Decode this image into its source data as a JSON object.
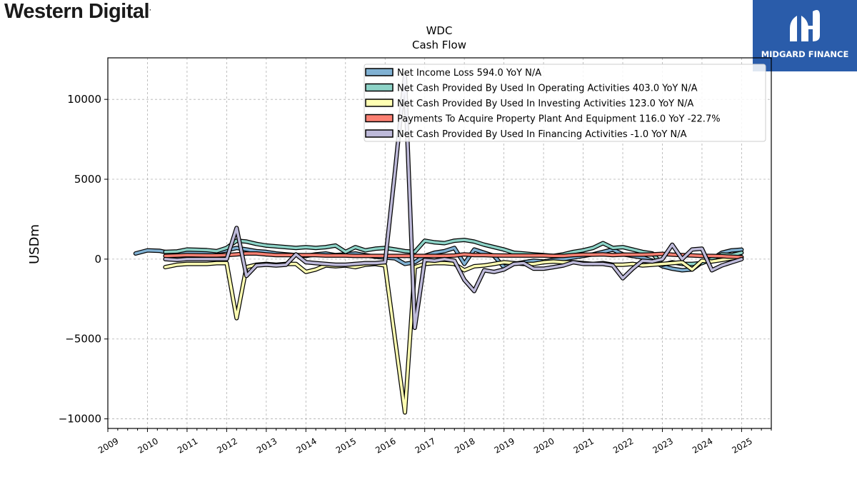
{
  "brand": {
    "name": "Western Digital"
  },
  "partner": {
    "name": "MIDGARD FINANCE"
  },
  "chart_data": {
    "type": "line",
    "title": "WDC",
    "subtitle": "Cash Flow",
    "ylabel": "USDm",
    "xlabel": "",
    "xlim": [
      2009.0,
      2025.75
    ],
    "ylim": [
      -10600,
      12600
    ],
    "y_ticks": [
      -10000,
      -5000,
      0,
      5000,
      10000
    ],
    "x_ticks": [
      2009,
      2010,
      2011,
      2012,
      2013,
      2014,
      2015,
      2016,
      2017,
      2018,
      2019,
      2020,
      2021,
      2022,
      2023,
      2024,
      2025
    ],
    "grid": true,
    "legend_position": "top-right",
    "series": [
      {
        "name": "Net Income Loss",
        "legend": "Net Income Loss  594.0 YoY N/A",
        "color": "#80b1d3",
        "points": [
          [
            2009.7,
            350
          ],
          [
            2010.0,
            550
          ],
          [
            2010.3,
            520
          ],
          [
            2010.5,
            420
          ],
          [
            2010.75,
            380
          ],
          [
            2011.0,
            430
          ],
          [
            2011.5,
            400
          ],
          [
            2011.75,
            450
          ],
          [
            2012.0,
            550
          ],
          [
            2012.25,
            700
          ],
          [
            2012.5,
            600
          ],
          [
            2012.75,
            500
          ],
          [
            2013.0,
            450
          ],
          [
            2013.25,
            350
          ],
          [
            2013.5,
            300
          ],
          [
            2013.75,
            250
          ],
          [
            2014.0,
            200
          ],
          [
            2014.25,
            300
          ],
          [
            2014.5,
            350
          ],
          [
            2014.75,
            250
          ],
          [
            2015.0,
            300
          ],
          [
            2015.25,
            350
          ],
          [
            2015.5,
            250
          ],
          [
            2015.75,
            150
          ],
          [
            2016.0,
            100
          ],
          [
            2016.25,
            50
          ],
          [
            2016.5,
            -300
          ],
          [
            2016.75,
            -200
          ],
          [
            2017.0,
            200
          ],
          [
            2017.25,
            400
          ],
          [
            2017.5,
            500
          ],
          [
            2017.75,
            700
          ],
          [
            2018.0,
            -300
          ],
          [
            2018.25,
            600
          ],
          [
            2018.5,
            400
          ],
          [
            2018.75,
            200
          ],
          [
            2019.0,
            -500
          ],
          [
            2019.25,
            -300
          ],
          [
            2019.5,
            -200
          ],
          [
            2019.75,
            -100
          ],
          [
            2020.0,
            -150
          ],
          [
            2020.25,
            -50
          ],
          [
            2020.5,
            0
          ],
          [
            2020.75,
            100
          ],
          [
            2021.0,
            200
          ],
          [
            2021.25,
            300
          ],
          [
            2021.5,
            450
          ],
          [
            2021.75,
            600
          ],
          [
            2022.0,
            300
          ],
          [
            2022.25,
            200
          ],
          [
            2022.5,
            100
          ],
          [
            2022.75,
            -100
          ],
          [
            2023.0,
            -450
          ],
          [
            2023.25,
            -600
          ],
          [
            2023.5,
            -700
          ],
          [
            2023.75,
            -650
          ],
          [
            2024.0,
            -200
          ],
          [
            2024.25,
            0
          ],
          [
            2024.5,
            400
          ],
          [
            2024.75,
            550
          ],
          [
            2025.0,
            594
          ]
        ]
      },
      {
        "name": "Net Cash Provided By Used In Operating Activities",
        "legend": "Net Cash Provided By Used In Operating Activities  403.0 YoY N/A",
        "color": "#8dd3c7",
        "points": [
          [
            2010.45,
            450
          ],
          [
            2010.75,
            480
          ],
          [
            2011.0,
            600
          ],
          [
            2011.5,
            560
          ],
          [
            2011.75,
            500
          ],
          [
            2012.0,
            700
          ],
          [
            2012.25,
            1150
          ],
          [
            2012.5,
            1100
          ],
          [
            2012.75,
            950
          ],
          [
            2013.0,
            850
          ],
          [
            2013.25,
            800
          ],
          [
            2013.5,
            750
          ],
          [
            2013.75,
            700
          ],
          [
            2014.0,
            750
          ],
          [
            2014.25,
            700
          ],
          [
            2014.5,
            750
          ],
          [
            2014.75,
            850
          ],
          [
            2015.0,
            450
          ],
          [
            2015.25,
            750
          ],
          [
            2015.5,
            550
          ],
          [
            2015.75,
            650
          ],
          [
            2016.0,
            700
          ],
          [
            2016.25,
            600
          ],
          [
            2016.5,
            500
          ],
          [
            2016.75,
            450
          ],
          [
            2017.0,
            1150
          ],
          [
            2017.25,
            1050
          ],
          [
            2017.5,
            1000
          ],
          [
            2017.75,
            1150
          ],
          [
            2018.0,
            1200
          ],
          [
            2018.25,
            1100
          ],
          [
            2018.5,
            900
          ],
          [
            2018.75,
            750
          ],
          [
            2019.0,
            600
          ],
          [
            2019.25,
            400
          ],
          [
            2019.5,
            350
          ],
          [
            2019.75,
            300
          ],
          [
            2020.0,
            250
          ],
          [
            2020.25,
            200
          ],
          [
            2020.5,
            300
          ],
          [
            2020.75,
            450
          ],
          [
            2021.0,
            550
          ],
          [
            2021.25,
            700
          ],
          [
            2021.5,
            1000
          ],
          [
            2021.75,
            700
          ],
          [
            2022.0,
            750
          ],
          [
            2022.25,
            600
          ],
          [
            2022.5,
            450
          ],
          [
            2022.75,
            350
          ],
          [
            2023.0,
            -350
          ],
          [
            2023.25,
            -200
          ],
          [
            2023.5,
            -300
          ],
          [
            2023.75,
            -300
          ],
          [
            2024.0,
            -250
          ],
          [
            2024.25,
            0
          ],
          [
            2024.5,
            300
          ],
          [
            2024.75,
            250
          ],
          [
            2025.0,
            403
          ]
        ]
      },
      {
        "name": "Net Cash Provided By Used In Investing Activities",
        "legend": "Net Cash Provided By Used In Investing Activities  123.0 YoY N/A",
        "color": "#ffffb3",
        "points": [
          [
            2010.45,
            -500
          ],
          [
            2010.75,
            -350
          ],
          [
            2011.0,
            -300
          ],
          [
            2011.5,
            -300
          ],
          [
            2011.75,
            -250
          ],
          [
            2012.0,
            -250
          ],
          [
            2012.25,
            -3700
          ],
          [
            2012.5,
            -500
          ],
          [
            2012.75,
            -350
          ],
          [
            2013.0,
            -300
          ],
          [
            2013.25,
            -350
          ],
          [
            2013.5,
            -300
          ],
          [
            2013.75,
            -300
          ],
          [
            2014.0,
            -800
          ],
          [
            2014.25,
            -650
          ],
          [
            2014.5,
            -400
          ],
          [
            2014.75,
            -450
          ],
          [
            2015.0,
            -400
          ],
          [
            2015.25,
            -500
          ],
          [
            2015.5,
            -350
          ],
          [
            2015.75,
            -300
          ],
          [
            2016.0,
            -400
          ],
          [
            2016.25,
            -5000
          ],
          [
            2016.5,
            -9600
          ],
          [
            2016.75,
            -500
          ],
          [
            2017.0,
            -300
          ],
          [
            2017.25,
            -250
          ],
          [
            2017.5,
            -250
          ],
          [
            2017.75,
            -300
          ],
          [
            2018.0,
            -700
          ],
          [
            2018.25,
            -450
          ],
          [
            2018.5,
            -400
          ],
          [
            2018.75,
            -300
          ],
          [
            2019.0,
            -200
          ],
          [
            2019.25,
            -250
          ],
          [
            2019.5,
            -300
          ],
          [
            2019.75,
            -300
          ],
          [
            2020.0,
            -200
          ],
          [
            2020.25,
            -150
          ],
          [
            2020.5,
            -200
          ],
          [
            2020.75,
            -200
          ],
          [
            2021.0,
            -250
          ],
          [
            2021.25,
            -300
          ],
          [
            2021.5,
            -250
          ],
          [
            2021.75,
            -350
          ],
          [
            2022.0,
            -350
          ],
          [
            2022.25,
            -300
          ],
          [
            2022.5,
            -400
          ],
          [
            2022.75,
            -350
          ],
          [
            2023.0,
            -300
          ],
          [
            2023.25,
            -250
          ],
          [
            2023.5,
            -200
          ],
          [
            2023.75,
            -650
          ],
          [
            2024.0,
            -100
          ],
          [
            2024.25,
            -150
          ],
          [
            2024.5,
            -50
          ],
          [
            2024.75,
            50
          ],
          [
            2025.0,
            123
          ]
        ]
      },
      {
        "name": "Payments To Acquire Property Plant And Equipment",
        "legend": "Payments To Acquire Property Plant And Equipment  116.0 YoY -22.7%",
        "color": "#fb8072",
        "points": [
          [
            2010.45,
            200
          ],
          [
            2010.75,
            220
          ],
          [
            2011.0,
            250
          ],
          [
            2011.5,
            230
          ],
          [
            2011.75,
            230
          ],
          [
            2012.0,
            250
          ],
          [
            2012.25,
            300
          ],
          [
            2012.5,
            350
          ],
          [
            2012.75,
            350
          ],
          [
            2013.0,
            300
          ],
          [
            2013.25,
            250
          ],
          [
            2013.5,
            250
          ],
          [
            2013.75,
            250
          ],
          [
            2014.0,
            250
          ],
          [
            2014.25,
            250
          ],
          [
            2014.5,
            220
          ],
          [
            2014.75,
            220
          ],
          [
            2015.0,
            220
          ],
          [
            2015.25,
            200
          ],
          [
            2015.5,
            200
          ],
          [
            2015.75,
            200
          ],
          [
            2016.0,
            200
          ],
          [
            2016.25,
            200
          ],
          [
            2016.5,
            200
          ],
          [
            2016.75,
            200
          ],
          [
            2017.0,
            200
          ],
          [
            2017.25,
            200
          ],
          [
            2017.5,
            200
          ],
          [
            2017.75,
            220
          ],
          [
            2018.0,
            300
          ],
          [
            2018.25,
            250
          ],
          [
            2018.5,
            250
          ],
          [
            2018.75,
            230
          ],
          [
            2019.0,
            220
          ],
          [
            2019.25,
            220
          ],
          [
            2019.5,
            220
          ],
          [
            2019.75,
            220
          ],
          [
            2020.0,
            220
          ],
          [
            2020.25,
            200
          ],
          [
            2020.5,
            200
          ],
          [
            2020.75,
            250
          ],
          [
            2021.0,
            280
          ],
          [
            2021.25,
            280
          ],
          [
            2021.5,
            300
          ],
          [
            2021.75,
            250
          ],
          [
            2022.0,
            280
          ],
          [
            2022.25,
            280
          ],
          [
            2022.5,
            280
          ],
          [
            2022.75,
            300
          ],
          [
            2023.0,
            330
          ],
          [
            2023.25,
            280
          ],
          [
            2023.5,
            250
          ],
          [
            2023.75,
            230
          ],
          [
            2024.0,
            200
          ],
          [
            2024.25,
            200
          ],
          [
            2024.5,
            180
          ],
          [
            2024.75,
            150
          ],
          [
            2025.0,
            116
          ]
        ]
      },
      {
        "name": "Net Cash Provided By Used In Financing Activities",
        "legend": "Net Cash Provided By Used In Financing Activities  -1.0 YoY N/A",
        "color": "#bebada",
        "points": [
          [
            2010.45,
            0
          ],
          [
            2010.75,
            -50
          ],
          [
            2011.0,
            0
          ],
          [
            2011.5,
            0
          ],
          [
            2011.75,
            0
          ],
          [
            2012.0,
            0
          ],
          [
            2012.25,
            1950
          ],
          [
            2012.5,
            -1050
          ],
          [
            2012.75,
            -400
          ],
          [
            2013.0,
            -350
          ],
          [
            2013.25,
            -400
          ],
          [
            2013.5,
            -350
          ],
          [
            2013.75,
            300
          ],
          [
            2014.0,
            -200
          ],
          [
            2014.25,
            -250
          ],
          [
            2014.5,
            -300
          ],
          [
            2014.75,
            -350
          ],
          [
            2015.0,
            -350
          ],
          [
            2015.25,
            -300
          ],
          [
            2015.5,
            -250
          ],
          [
            2015.75,
            -250
          ],
          [
            2016.0,
            -200
          ],
          [
            2016.25,
            5500
          ],
          [
            2016.5,
            11500
          ],
          [
            2016.75,
            -4300
          ],
          [
            2017.0,
            -50
          ],
          [
            2017.25,
            -100
          ],
          [
            2017.5,
            0
          ],
          [
            2017.75,
            -100
          ],
          [
            2018.0,
            -1300
          ],
          [
            2018.25,
            -2000
          ],
          [
            2018.5,
            -700
          ],
          [
            2018.75,
            -800
          ],
          [
            2019.0,
            -650
          ],
          [
            2019.25,
            -300
          ],
          [
            2019.5,
            -250
          ],
          [
            2019.75,
            -600
          ],
          [
            2020.0,
            -600
          ],
          [
            2020.25,
            -500
          ],
          [
            2020.5,
            -400
          ],
          [
            2020.75,
            -200
          ],
          [
            2021.0,
            -300
          ],
          [
            2021.25,
            -300
          ],
          [
            2021.5,
            -300
          ],
          [
            2021.75,
            -400
          ],
          [
            2022.0,
            -1200
          ],
          [
            2022.25,
            -600
          ],
          [
            2022.5,
            -100
          ],
          [
            2022.75,
            -150
          ],
          [
            2023.0,
            0
          ],
          [
            2023.25,
            900
          ],
          [
            2023.5,
            0
          ],
          [
            2023.75,
            600
          ],
          [
            2024.0,
            650
          ],
          [
            2024.25,
            -700
          ],
          [
            2024.5,
            -400
          ],
          [
            2024.75,
            -200
          ],
          [
            2025.0,
            -1
          ]
        ]
      }
    ]
  }
}
